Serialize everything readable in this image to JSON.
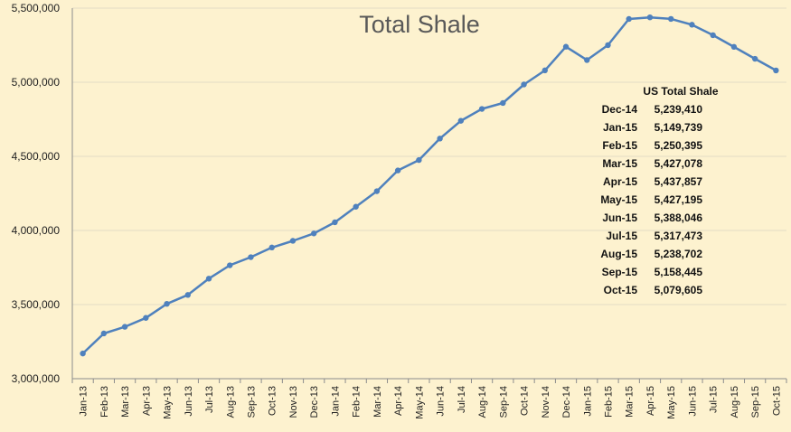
{
  "chart_data": {
    "type": "line",
    "title": "Total Shale",
    "xlabel": "",
    "ylabel": "",
    "ylim": [
      3000000,
      5500000
    ],
    "yticks": [
      "3,000,000",
      "3,500,000",
      "4,000,000",
      "4,500,000",
      "5,000,000",
      "5,500,000"
    ],
    "grid": true,
    "legend": "none",
    "series_color": "#4f81bd",
    "categories": [
      "Jan-13",
      "Feb-13",
      "Mar-13",
      "Apr-13",
      "May-13",
      "Jun-13",
      "Jul-13",
      "Aug-13",
      "Sep-13",
      "Oct-13",
      "Nov-13",
      "Dec-13",
      "Jan-14",
      "Feb-14",
      "Mar-14",
      "Apr-14",
      "May-14",
      "Jun-14",
      "Jul-14",
      "Aug-14",
      "Sep-14",
      "Oct-14",
      "Nov-14",
      "Dec-14",
      "Jan-15",
      "Feb-15",
      "Mar-15",
      "Apr-15",
      "May-15",
      "Jun-15",
      "Jul-15",
      "Aug-15",
      "Sep-15",
      "Oct-15"
    ],
    "values": [
      3170000,
      3305000,
      3350000,
      3410000,
      3505000,
      3565000,
      3675000,
      3765000,
      3820000,
      3885000,
      3930000,
      3980000,
      4055000,
      4160000,
      4265000,
      4405000,
      4475000,
      4620000,
      4740000,
      4820000,
      4860000,
      4985000,
      5080000,
      5239410,
      5149739,
      5250395,
      5427078,
      5437857,
      5427195,
      5388046,
      5317473,
      5238702,
      5158445,
      5079605
    ],
    "table": {
      "header": "US Total Shale",
      "rows": [
        {
          "month": "Dec-14",
          "value": "5,239,410"
        },
        {
          "month": "Jan-15",
          "value": "5,149,739"
        },
        {
          "month": "Feb-15",
          "value": "5,250,395"
        },
        {
          "month": "Mar-15",
          "value": "5,427,078"
        },
        {
          "month": "Apr-15",
          "value": "5,437,857"
        },
        {
          "month": "May-15",
          "value": "5,427,195"
        },
        {
          "month": "Jun-15",
          "value": "5,388,046"
        },
        {
          "month": "Jul-15",
          "value": "5,317,473"
        },
        {
          "month": "Aug-15",
          "value": "5,238,702"
        },
        {
          "month": "Sep-15",
          "value": "5,158,445"
        },
        {
          "month": "Oct-15",
          "value": "5,079,605"
        }
      ]
    }
  }
}
